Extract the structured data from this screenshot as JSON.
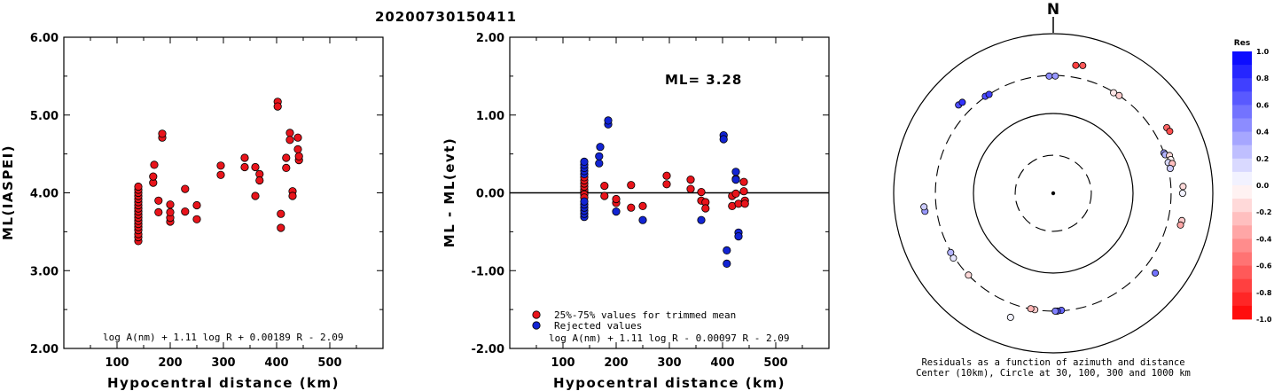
{
  "figure_title": "20200730150411",
  "chart_data": [
    {
      "type": "scatter",
      "ylabel": "ML(IASPEI)",
      "xlabel": "Hypocentral distance (km)",
      "xlim": [
        0,
        600
      ],
      "ylim": [
        2.0,
        6.0
      ],
      "x_ticks": [
        100,
        200,
        300,
        400,
        500
      ],
      "y_ticks": [
        "2.00",
        "3.00",
        "4.00",
        "5.00",
        "6.00"
      ],
      "formula": "log A(nm) + 1.11 log R + 0.00189 R - 2.09",
      "series": [
        {
          "color": "#e8141b",
          "points": [
            [
              140,
              3.38
            ],
            [
              140,
              3.43
            ],
            [
              140,
              3.47
            ],
            [
              140,
              3.52
            ],
            [
              140,
              3.56
            ],
            [
              140,
              3.6
            ],
            [
              140,
              3.64
            ],
            [
              140,
              3.68
            ],
            [
              140,
              3.72
            ],
            [
              140,
              3.76
            ],
            [
              140,
              3.8
            ],
            [
              140,
              3.84
            ],
            [
              140,
              3.88
            ],
            [
              140,
              3.92
            ],
            [
              140,
              3.96
            ],
            [
              140,
              4.0
            ],
            [
              140,
              4.04
            ],
            [
              140,
              4.08
            ],
            [
              168,
              4.13
            ],
            [
              168,
              4.21
            ],
            [
              170,
              4.36
            ],
            [
              178,
              3.75
            ],
            [
              178,
              3.9
            ],
            [
              185,
              4.71
            ],
            [
              185,
              4.76
            ],
            [
              200,
              3.63
            ],
            [
              200,
              3.68
            ],
            [
              200,
              3.75
            ],
            [
              200,
              3.85
            ],
            [
              228,
              4.05
            ],
            [
              228,
              3.76
            ],
            [
              250,
              3.66
            ],
            [
              250,
              3.84
            ],
            [
              295,
              4.23
            ],
            [
              295,
              4.35
            ],
            [
              340,
              4.33
            ],
            [
              340,
              4.45
            ],
            [
              360,
              4.33
            ],
            [
              360,
              3.96
            ],
            [
              368,
              4.24
            ],
            [
              368,
              4.16
            ],
            [
              402,
              5.17
            ],
            [
              402,
              5.11
            ],
            [
              408,
              3.73
            ],
            [
              408,
              3.55
            ],
            [
              418,
              4.32
            ],
            [
              418,
              4.45
            ],
            [
              425,
              4.77
            ],
            [
              425,
              4.68
            ],
            [
              430,
              4.02
            ],
            [
              430,
              3.96
            ],
            [
              440,
              4.71
            ],
            [
              440,
              4.56
            ],
            [
              442,
              4.42
            ],
            [
              442,
              4.47
            ]
          ]
        }
      ]
    },
    {
      "type": "scatter",
      "ylabel": "ML - ML(evt)",
      "xlabel": "Hypocentral distance (km)",
      "xlim": [
        0,
        600
      ],
      "ylim": [
        -2.0,
        2.0
      ],
      "x_ticks": [
        100,
        200,
        300,
        400,
        500
      ],
      "y_ticks": [
        "-2.00",
        "-1.00",
        "0.00",
        "1.00",
        "2.00"
      ],
      "annotation": "ML= 3.28",
      "formula": "log A(nm) + 1.11 log R - 0.00097 R - 2.09",
      "series": [
        {
          "name": "25%-75% values for trimmed mean",
          "color": "#e8141b",
          "points": [
            [
              140,
              0.01
            ],
            [
              140,
              0.04
            ],
            [
              140,
              0.08
            ],
            [
              140,
              0.12
            ],
            [
              140,
              0.16
            ],
            [
              140,
              0.2
            ],
            [
              140,
              -0.02
            ],
            [
              140,
              -0.06
            ],
            [
              178,
              0.09
            ],
            [
              178,
              -0.04
            ],
            [
              200,
              -0.13
            ],
            [
              200,
              -0.08
            ],
            [
              228,
              0.1
            ],
            [
              228,
              -0.19
            ],
            [
              250,
              -0.17
            ],
            [
              295,
              0.11
            ],
            [
              295,
              0.22
            ],
            [
              340,
              0.05
            ],
            [
              340,
              0.17
            ],
            [
              360,
              0.01
            ],
            [
              360,
              -0.1
            ],
            [
              368,
              -0.12
            ],
            [
              368,
              -0.2
            ],
            [
              418,
              -0.04
            ],
            [
              418,
              -0.17
            ],
            [
              425,
              0.18
            ],
            [
              425,
              -0.01
            ],
            [
              430,
              -0.14
            ],
            [
              440,
              0.14
            ],
            [
              440,
              0.02
            ],
            [
              442,
              -0.1
            ],
            [
              442,
              -0.14
            ]
          ]
        },
        {
          "name": "Rejected values",
          "color": "#1224d4",
          "points": [
            [
              140,
              -0.31
            ],
            [
              140,
              -0.27
            ],
            [
              140,
              -0.23
            ],
            [
              140,
              -0.19
            ],
            [
              140,
              -0.15
            ],
            [
              140,
              -0.11
            ],
            [
              140,
              0.24
            ],
            [
              140,
              0.28
            ],
            [
              140,
              0.32
            ],
            [
              140,
              0.36
            ],
            [
              140,
              0.4
            ],
            [
              168,
              0.38
            ],
            [
              168,
              0.47
            ],
            [
              170,
              0.59
            ],
            [
              185,
              0.88
            ],
            [
              185,
              0.93
            ],
            [
              200,
              -0.24
            ],
            [
              250,
              -0.35
            ],
            [
              360,
              -0.35
            ],
            [
              402,
              0.74
            ],
            [
              402,
              0.69
            ],
            [
              408,
              -0.74
            ],
            [
              408,
              -0.91
            ],
            [
              425,
              0.27
            ],
            [
              425,
              0.17
            ],
            [
              430,
              -0.51
            ],
            [
              430,
              -0.56
            ]
          ]
        }
      ]
    },
    {
      "type": "polar",
      "north_label": "N",
      "caption_line1": "Residuals as a function of azimuth and distance",
      "caption_line2": "Center (10km), Circle at 30, 100, 300 and 1000 km",
      "colorbar_title": "Res",
      "colorbar_ticks": [
        "1.0",
        "0.8",
        "0.6",
        "0.4",
        "0.2",
        "0.0",
        "-0.2",
        "-0.4",
        "-0.6",
        "-0.8",
        "-1.0"
      ],
      "points": [
        {
          "azimuth_deg": 10,
          "distance_km": 425,
          "residual": -0.75
        },
        {
          "azimuth_deg": 13,
          "distance_km": 440,
          "residual": -0.65
        },
        {
          "azimuth_deg": 358,
          "distance_km": 295,
          "residual": 0.45
        },
        {
          "azimuth_deg": 1,
          "distance_km": 295,
          "residual": 0.4
        },
        {
          "azimuth_deg": 31,
          "distance_km": 295,
          "residual": -0.1
        },
        {
          "azimuth_deg": 34,
          "distance_km": 300,
          "residual": -0.2
        },
        {
          "azimuth_deg": 313,
          "distance_km": 420,
          "residual": 0.7
        },
        {
          "azimuth_deg": 315,
          "distance_km": 410,
          "residual": 0.8
        },
        {
          "azimuth_deg": 325,
          "distance_km": 305,
          "residual": 0.7
        },
        {
          "azimuth_deg": 327,
          "distance_km": 300,
          "residual": 0.75
        },
        {
          "azimuth_deg": 60,
          "distance_km": 440,
          "residual": -0.6
        },
        {
          "azimuth_deg": 62,
          "distance_km": 450,
          "residual": -0.7
        },
        {
          "azimuth_deg": 70,
          "distance_km": 300,
          "residual": 0.4
        },
        {
          "azimuth_deg": 71,
          "distance_km": 305,
          "residual": 0.3
        },
        {
          "azimuth_deg": 72,
          "distance_km": 340,
          "residual": -0.15
        },
        {
          "azimuth_deg": 74,
          "distance_km": 340,
          "residual": -0.05
        },
        {
          "azimuth_deg": 75,
          "distance_km": 310,
          "residual": 0.15
        },
        {
          "azimuth_deg": 76,
          "distance_km": 345,
          "residual": -0.25
        },
        {
          "azimuth_deg": 78,
          "distance_km": 315,
          "residual": 0.2
        },
        {
          "azimuth_deg": 87,
          "distance_km": 425,
          "residual": -0.15
        },
        {
          "azimuth_deg": 90,
          "distance_km": 418,
          "residual": 0.05
        },
        {
          "azimuth_deg": 102,
          "distance_km": 445,
          "residual": -0.2
        },
        {
          "azimuth_deg": 104,
          "distance_km": 440,
          "residual": -0.35
        },
        {
          "azimuth_deg": 128,
          "distance_km": 420,
          "residual": 0.55
        },
        {
          "azimuth_deg": 176,
          "distance_km": 295,
          "residual": 0.6
        },
        {
          "azimuth_deg": 178,
          "distance_km": 300,
          "residual": 0.7
        },
        {
          "azimuth_deg": 179,
          "distance_km": 300,
          "residual": 0.5
        },
        {
          "azimuth_deg": 189,
          "distance_km": 300,
          "residual": -0.2
        },
        {
          "azimuth_deg": 191,
          "distance_km": 298,
          "residual": -0.3
        },
        {
          "azimuth_deg": 199,
          "distance_km": 440,
          "residual": 0.05
        },
        {
          "azimuth_deg": 226,
          "distance_km": 300,
          "residual": -0.15
        },
        {
          "azimuth_deg": 237,
          "distance_km": 310,
          "residual": 0.1
        },
        {
          "azimuth_deg": 240,
          "distance_km": 305,
          "residual": 0.3
        },
        {
          "azimuth_deg": 262,
          "distance_km": 420,
          "residual": 0.4
        },
        {
          "azimuth_deg": 264,
          "distance_km": 425,
          "residual": 0.2
        }
      ]
    }
  ]
}
